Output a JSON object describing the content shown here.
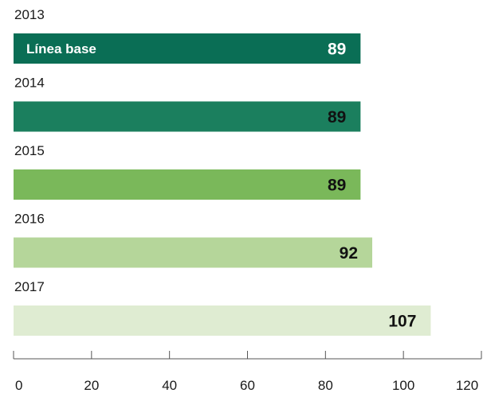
{
  "chart_data": {
    "type": "bar",
    "orientation": "horizontal",
    "categories": [
      "2013",
      "2014",
      "2015",
      "2016",
      "2017"
    ],
    "values": [
      89,
      89,
      89,
      92,
      107
    ],
    "bar_labels": [
      "Línea base",
      "",
      "",
      "",
      ""
    ],
    "colors": [
      "#0a6e55",
      "#1b7f5e",
      "#7ab85a",
      "#b5d69a",
      "#dfecd2"
    ],
    "value_label_colors": [
      "#ffffff",
      "#111111",
      "#111111",
      "#111111",
      "#111111"
    ],
    "xlim": [
      0,
      120
    ],
    "xticks": [
      0,
      20,
      40,
      60,
      80,
      100,
      120
    ],
    "grid": false,
    "title": "",
    "xlabel": "",
    "ylabel": ""
  }
}
